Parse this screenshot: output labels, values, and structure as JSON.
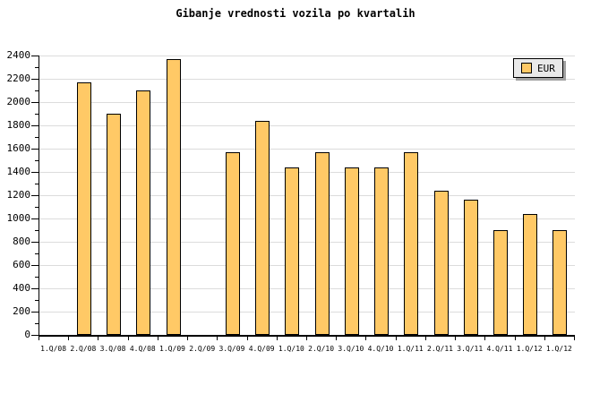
{
  "title": "Gibanje vrednosti vozila po kvartalih",
  "legend": {
    "label": "EUR"
  },
  "colors": {
    "background": "#FFFFFF",
    "bar_fill": "#FFC966",
    "bar_border": "#000000",
    "gridline": "#DCDCDC",
    "axis": "#000000",
    "text": "#000000",
    "legend_bg": "#E9E9E9",
    "legend_shadow": "#A0A0A0"
  },
  "chart_data": {
    "type": "bar",
    "title": "Gibanje vrednosti vozila po kvartalih",
    "xlabel": "",
    "ylabel": "",
    "categories": [
      "1.Q/08",
      "2.Q/08",
      "3.Q/08",
      "4.Q/08",
      "1.Q/09",
      "2.Q/09",
      "3.Q/09",
      "4.Q/09",
      "1.Q/10",
      "2.Q/10",
      "3.Q/10",
      "4.Q/10",
      "1.Q/11",
      "2.Q/11",
      "3.Q/11",
      "4.Q/11",
      "1.Q/12",
      "1.Q/12"
    ],
    "series": [
      {
        "name": "EUR",
        "values": [
          null,
          2170,
          1900,
          2100,
          2370,
          null,
          1570,
          1840,
          1440,
          1570,
          1440,
          1440,
          1570,
          1240,
          1160,
          900,
          1040,
          900
        ]
      }
    ],
    "ylim": [
      0,
      2400
    ],
    "y_major_step": 200,
    "y_minor_step": 100,
    "grid": "horizontal-major",
    "legend_position": "top-right"
  }
}
